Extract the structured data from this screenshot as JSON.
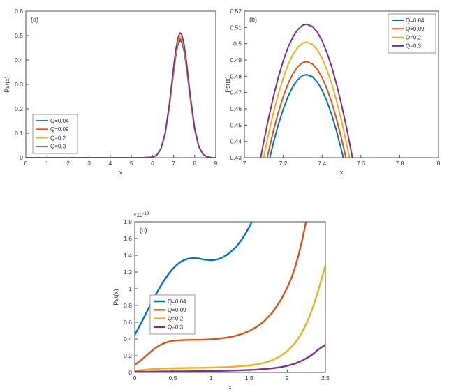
{
  "page": {
    "background": "#ffffff"
  },
  "style": {
    "axis_color": "#4d4d4d",
    "text_color": "#333333",
    "legend_edge": "#999999",
    "series_colors": [
      "#0072BD",
      "#D95319",
      "#EDB120",
      "#7E2F8E"
    ]
  },
  "chart_data": [
    {
      "id": "a",
      "type": "line",
      "panel_label": "(a)",
      "xlabel": "x",
      "ylabel": "Pst(x)",
      "xlim": [
        0,
        9
      ],
      "ylim": [
        0,
        0.6
      ],
      "grid": false,
      "xticks": [
        0,
        1,
        2,
        3,
        4,
        5,
        6,
        7,
        8,
        9
      ],
      "xtick_labels": [
        "0",
        "1",
        "2",
        "3",
        "4",
        "5",
        "6",
        "7",
        "8",
        "9"
      ],
      "yticks": [
        0,
        0.1,
        0.2,
        0.3,
        0.4,
        0.5,
        0.6
      ],
      "ytick_labels": [
        "0",
        "0.1",
        "0.2",
        "0.3",
        "0.4",
        "0.5",
        "0.6"
      ],
      "legend": {
        "position": "southwest",
        "entries": [
          "Q=0.04",
          "Q=0.09",
          "Q=0.2",
          "Q=0.3"
        ]
      },
      "x": [
        0,
        1,
        2,
        3,
        4,
        5,
        5.5,
        6,
        6.2,
        6.4,
        6.6,
        6.8,
        6.9,
        7,
        7.1,
        7.2,
        7.3,
        7.4,
        7.5,
        7.6,
        7.7,
        7.8,
        8,
        8.2,
        8.4,
        8.6,
        8.8,
        9
      ],
      "series": [
        {
          "name": "Q=0.04",
          "color": "#0072BD",
          "y": [
            0,
            0,
            0,
            0,
            0,
            0,
            0,
            0.0021,
            0.0095,
            0.0342,
            0.0952,
            0.2066,
            0.2772,
            0.3493,
            0.4135,
            0.4598,
            0.4804,
            0.4715,
            0.4347,
            0.3765,
            0.3063,
            0.2342,
            0.1134,
            0.0428,
            0.0126,
            0.0029,
            0.0005,
            0
          ]
        },
        {
          "name": "Q=0.09",
          "color": "#D95319",
          "y": [
            0,
            0,
            0,
            0,
            0,
            0,
            0,
            0.0021,
            0.0097,
            0.0347,
            0.0968,
            0.2101,
            0.2818,
            0.3551,
            0.4203,
            0.4675,
            0.4884,
            0.4793,
            0.4419,
            0.3827,
            0.3114,
            0.238,
            0.1153,
            0.0435,
            0.0128,
            0.0029,
            0.0005,
            0
          ]
        },
        {
          "name": "Q=0.2",
          "color": "#EDB120",
          "y": [
            0,
            0,
            0,
            0,
            0,
            0,
            0,
            0.0022,
            0.0099,
            0.0356,
            0.0991,
            0.2152,
            0.2887,
            0.3638,
            0.4307,
            0.479,
            0.5004,
            0.4911,
            0.4528,
            0.3921,
            0.319,
            0.2439,
            0.1181,
            0.0445,
            0.0131,
            0.003,
            0.0006,
            0
          ]
        },
        {
          "name": "Q=0.3",
          "color": "#7E2F8E",
          "y": [
            0,
            0,
            0,
            0,
            0,
            0,
            0,
            0.0022,
            0.0101,
            0.0364,
            0.1013,
            0.22,
            0.295,
            0.3718,
            0.4401,
            0.4895,
            0.5114,
            0.5019,
            0.4627,
            0.4007,
            0.326,
            0.2492,
            0.1207,
            0.0455,
            0.0134,
            0.0031,
            0.0006,
            0.0001
          ]
        }
      ]
    },
    {
      "id": "b",
      "type": "line",
      "panel_label": "(b)",
      "xlabel": "x",
      "ylabel": "Pst(x)",
      "xlim": [
        7,
        8
      ],
      "ylim": [
        0.43,
        0.52
      ],
      "grid": false,
      "xticks": [
        7,
        7.2,
        7.4,
        7.6,
        7.8,
        8
      ],
      "xtick_labels": [
        "7",
        "7.2",
        "7.4",
        "7.6",
        "7.8",
        "8"
      ],
      "yticks": [
        0.43,
        0.44,
        0.45,
        0.46,
        0.47,
        0.48,
        0.49,
        0.5,
        0.51,
        0.52
      ],
      "ytick_labels": [
        "0.43",
        "0.44",
        "0.45",
        "0.46",
        "0.47",
        "0.48",
        "0.49",
        "0.5",
        "0.51",
        "0.52"
      ],
      "legend": {
        "position": "northeast",
        "entries": [
          "Q=0.04",
          "Q=0.09",
          "Q=0.2",
          "Q=0.3"
        ]
      },
      "x": [
        7,
        7.025,
        7.05,
        7.075,
        7.1,
        7.125,
        7.15,
        7.175,
        7.2,
        7.225,
        7.25,
        7.275,
        7.3,
        7.32,
        7.35,
        7.375,
        7.4,
        7.425,
        7.45,
        7.475,
        7.5,
        7.525,
        7.55,
        7.575,
        7.6,
        7.625,
        7.65
      ],
      "series": [
        {
          "name": "Q=0.04",
          "color": "#0072BD",
          "peak": 0.481,
          "y": [
            0.3493,
            0.3665,
            0.383,
            0.3987,
            0.4135,
            0.4271,
            0.4394,
            0.4504,
            0.4598,
            0.4676,
            0.4737,
            0.478,
            0.4804,
            0.481,
            0.4797,
            0.4765,
            0.4715,
            0.4647,
            0.4563,
            0.4462,
            0.4347,
            0.4218,
            0.4077,
            0.3925,
            0.3765,
            0.3596,
            0.3423
          ]
        },
        {
          "name": "Q=0.09",
          "color": "#D95319",
          "peak": 0.489,
          "y": [
            0.3551,
            0.3726,
            0.3894,
            0.4054,
            0.4203,
            0.4342,
            0.4468,
            0.4579,
            0.4675,
            0.4754,
            0.4816,
            0.4859,
            0.4884,
            0.489,
            0.4876,
            0.4844,
            0.4793,
            0.4724,
            0.4639,
            0.4536,
            0.4419,
            0.4288,
            0.4145,
            0.3991,
            0.3827,
            0.3656,
            0.348
          ]
        },
        {
          "name": "Q=0.2",
          "color": "#EDB120",
          "peak": 0.501,
          "y": [
            0.3638,
            0.3817,
            0.3989,
            0.4153,
            0.4307,
            0.4449,
            0.4577,
            0.4691,
            0.479,
            0.4871,
            0.4934,
            0.4978,
            0.5004,
            0.501,
            0.4996,
            0.4963,
            0.4911,
            0.484,
            0.4753,
            0.4648,
            0.4528,
            0.4393,
            0.4247,
            0.4089,
            0.3921,
            0.3746,
            0.3565
          ]
        },
        {
          "name": "Q=0.3",
          "color": "#7E2F8E",
          "peak": 0.512,
          "y": [
            0.3718,
            0.3901,
            0.4077,
            0.4244,
            0.4401,
            0.4547,
            0.4678,
            0.4794,
            0.4895,
            0.4978,
            0.5042,
            0.5088,
            0.5114,
            0.512,
            0.5106,
            0.5072,
            0.5019,
            0.4946,
            0.4857,
            0.475,
            0.4627,
            0.449,
            0.434,
            0.4178,
            0.4007,
            0.3828,
            0.3643
          ]
        }
      ]
    },
    {
      "id": "c",
      "type": "line",
      "panel_label": "(c)",
      "xlabel": "x",
      "ylabel": "Pst(x)",
      "y_exponent": {
        "base": "×10",
        "power": "-13"
      },
      "xlim": [
        0,
        2.5
      ],
      "ylim": [
        0,
        1.8
      ],
      "grid": false,
      "xticks": [
        0,
        0.5,
        1,
        1.5,
        2,
        2.5
      ],
      "xtick_labels": [
        "0",
        "0.5",
        "1",
        "1.5",
        "2",
        "2.5"
      ],
      "yticks": [
        0,
        0.2,
        0.4,
        0.6,
        0.8,
        1,
        1.2,
        1.4,
        1.6,
        1.8
      ],
      "ytick_labels": [
        "0",
        "0.2",
        "0.4",
        "0.6",
        "0.8",
        "1",
        "1.2",
        "1.4",
        "1.6",
        "1.8"
      ],
      "legend": {
        "position": "west",
        "entries": [
          "Q=0.04",
          "Q=0.09",
          "Q=0.2",
          "Q=0.3"
        ]
      },
      "series": [
        {
          "name": "Q=0.04",
          "color": "#0072BD",
          "points": [
            [
              0,
              0.45
            ],
            [
              0.05,
              0.535
            ],
            [
              0.1,
              0.62
            ],
            [
              0.15,
              0.71
            ],
            [
              0.2,
              0.8
            ],
            [
              0.25,
              0.89
            ],
            [
              0.3,
              0.97
            ],
            [
              0.35,
              1.05
            ],
            [
              0.4,
              1.12
            ],
            [
              0.45,
              1.185
            ],
            [
              0.5,
              1.24
            ],
            [
              0.55,
              1.285
            ],
            [
              0.6,
              1.32
            ],
            [
              0.65,
              1.345
            ],
            [
              0.7,
              1.36
            ],
            [
              0.75,
              1.365
            ],
            [
              0.8,
              1.365
            ],
            [
              0.85,
              1.36
            ],
            [
              0.9,
              1.35
            ],
            [
              0.95,
              1.345
            ],
            [
              1,
              1.34
            ],
            [
              1.05,
              1.345
            ],
            [
              1.1,
              1.355
            ],
            [
              1.15,
              1.375
            ],
            [
              1.2,
              1.4
            ],
            [
              1.25,
              1.435
            ],
            [
              1.3,
              1.475
            ],
            [
              1.35,
              1.525
            ],
            [
              1.4,
              1.585
            ],
            [
              1.45,
              1.655
            ],
            [
              1.5,
              1.735
            ],
            [
              1.55,
              1.83
            ],
            [
              1.6,
              1.94
            ]
          ]
        },
        {
          "name": "Q=0.09",
          "color": "#D95319",
          "points": [
            [
              0,
              0.09
            ],
            [
              0.05,
              0.125
            ],
            [
              0.1,
              0.16
            ],
            [
              0.15,
              0.2
            ],
            [
              0.2,
              0.24
            ],
            [
              0.25,
              0.278
            ],
            [
              0.3,
              0.31
            ],
            [
              0.35,
              0.335
            ],
            [
              0.4,
              0.355
            ],
            [
              0.45,
              0.368
            ],
            [
              0.5,
              0.378
            ],
            [
              0.6,
              0.386
            ],
            [
              0.7,
              0.389
            ],
            [
              0.8,
              0.39
            ],
            [
              0.9,
              0.392
            ],
            [
              1,
              0.396
            ],
            [
              1.1,
              0.404
            ],
            [
              1.2,
              0.416
            ],
            [
              1.3,
              0.433
            ],
            [
              1.4,
              0.458
            ],
            [
              1.5,
              0.495
            ],
            [
              1.6,
              0.545
            ],
            [
              1.7,
              0.615
            ],
            [
              1.8,
              0.712
            ],
            [
              1.9,
              0.845
            ],
            [
              1.95,
              0.925
            ],
            [
              2,
              1.015
            ],
            [
              2.05,
              1.12
            ],
            [
              2.1,
              1.25
            ],
            [
              2.15,
              1.41
            ],
            [
              2.2,
              1.6
            ],
            [
              2.25,
              1.82
            ],
            [
              2.3,
              2.06
            ]
          ]
        },
        {
          "name": "Q=0.2",
          "color": "#EDB120",
          "points": [
            [
              0,
              0.02
            ],
            [
              0.1,
              0.03
            ],
            [
              0.2,
              0.038
            ],
            [
              0.3,
              0.044
            ],
            [
              0.4,
              0.048
            ],
            [
              0.5,
              0.05
            ],
            [
              0.7,
              0.053
            ],
            [
              0.9,
              0.056
            ],
            [
              1.1,
              0.061
            ],
            [
              1.3,
              0.069
            ],
            [
              1.5,
              0.083
            ],
            [
              1.6,
              0.096
            ],
            [
              1.7,
              0.116
            ],
            [
              1.8,
              0.146
            ],
            [
              1.9,
              0.19
            ],
            [
              2,
              0.255
            ],
            [
              2.1,
              0.35
            ],
            [
              2.15,
              0.415
            ],
            [
              2.2,
              0.49
            ],
            [
              2.25,
              0.585
            ],
            [
              2.3,
              0.69
            ],
            [
              2.35,
              0.815
            ],
            [
              2.4,
              0.96
            ],
            [
              2.45,
              1.115
            ],
            [
              2.5,
              1.28
            ]
          ]
        },
        {
          "name": "Q=0.3",
          "color": "#7E2F8E",
          "points": [
            [
              0,
              0.008
            ],
            [
              0.2,
              0.01
            ],
            [
              0.4,
              0.012
            ],
            [
              0.6,
              0.013
            ],
            [
              0.8,
              0.015
            ],
            [
              1,
              0.017
            ],
            [
              1.2,
              0.021
            ],
            [
              1.4,
              0.026
            ],
            [
              1.6,
              0.034
            ],
            [
              1.8,
              0.049
            ],
            [
              1.9,
              0.061
            ],
            [
              2,
              0.079
            ],
            [
              2.1,
              0.105
            ],
            [
              2.2,
              0.143
            ],
            [
              2.3,
              0.196
            ],
            [
              2.35,
              0.23
            ],
            [
              2.4,
              0.27
            ],
            [
              2.45,
              0.3
            ],
            [
              2.5,
              0.33
            ]
          ]
        }
      ]
    }
  ]
}
